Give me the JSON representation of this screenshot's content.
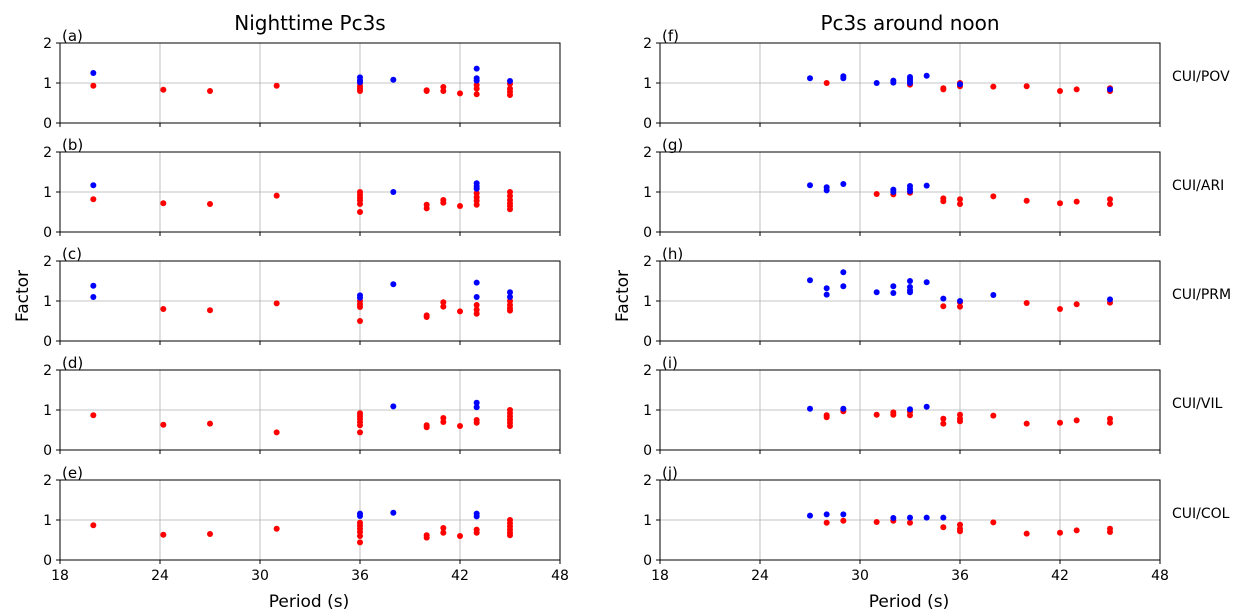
{
  "chart_data": {
    "type": "scatter",
    "column_titles": [
      "Nighttime Pc3s",
      "Pc3s around noon"
    ],
    "xlabel": "Period (s)",
    "ylabel": "Factor",
    "xlim": [
      18,
      48
    ],
    "ylim": [
      0,
      2
    ],
    "xticks": [
      18,
      24,
      30,
      36,
      42,
      48
    ],
    "yticks": [
      0,
      1,
      2
    ],
    "grid": true,
    "series_colors": {
      "blue": "#0000ff",
      "red": "#ff0000"
    },
    "stations": [
      "CUI/POV",
      "CUI/ARI",
      "CUI/PRM",
      "CUI/VIL",
      "CUI/COL"
    ],
    "panels": [
      {
        "label": "(a)",
        "column": 0,
        "row": 0,
        "blue": [
          [
            20,
            1.25
          ],
          [
            36,
            1.14
          ],
          [
            36,
            1.07
          ],
          [
            36,
            1.02
          ],
          [
            38,
            1.08
          ],
          [
            43,
            1.36
          ],
          [
            43,
            1.12
          ],
          [
            43,
            1.06
          ],
          [
            45,
            1.05
          ]
        ],
        "red": [
          [
            20,
            0.93
          ],
          [
            24.2,
            0.83
          ],
          [
            27,
            0.8
          ],
          [
            31,
            0.93
          ],
          [
            36,
            1.0
          ],
          [
            36,
            0.92
          ],
          [
            36,
            0.86
          ],
          [
            36,
            0.8
          ],
          [
            40,
            0.82
          ],
          [
            40,
            0.8
          ],
          [
            41,
            0.9
          ],
          [
            41,
            0.8
          ],
          [
            42,
            0.74
          ],
          [
            43,
            0.95
          ],
          [
            43,
            0.86
          ],
          [
            43,
            0.72
          ],
          [
            45,
            0.98
          ],
          [
            45,
            0.86
          ],
          [
            45,
            0.78
          ],
          [
            45,
            0.7
          ]
        ]
      },
      {
        "label": "(b)",
        "column": 0,
        "row": 1,
        "blue": [
          [
            20,
            1.17
          ],
          [
            38,
            1.0
          ],
          [
            43,
            1.22
          ],
          [
            43,
            1.14
          ],
          [
            43,
            1.08
          ]
        ],
        "red": [
          [
            20,
            0.82
          ],
          [
            24.2,
            0.72
          ],
          [
            27,
            0.7
          ],
          [
            31,
            0.91
          ],
          [
            36,
            1.0
          ],
          [
            36,
            0.93
          ],
          [
            36,
            0.86
          ],
          [
            36,
            0.79
          ],
          [
            36,
            0.7
          ],
          [
            36,
            0.5
          ],
          [
            40,
            0.68
          ],
          [
            40,
            0.59
          ],
          [
            41,
            0.8
          ],
          [
            41,
            0.73
          ],
          [
            42,
            0.65
          ],
          [
            43,
            0.97
          ],
          [
            43,
            0.87
          ],
          [
            43,
            0.78
          ],
          [
            43,
            0.68
          ],
          [
            45,
            1.0
          ],
          [
            45,
            0.9
          ],
          [
            45,
            0.8
          ],
          [
            45,
            0.72
          ],
          [
            45,
            0.65
          ],
          [
            45,
            0.57
          ]
        ]
      },
      {
        "label": "(c)",
        "column": 0,
        "row": 2,
        "blue": [
          [
            20,
            1.38
          ],
          [
            20,
            1.1
          ],
          [
            36,
            1.14
          ],
          [
            36,
            1.08
          ],
          [
            38,
            1.42
          ],
          [
            43,
            1.46
          ],
          [
            43,
            1.1
          ],
          [
            45,
            1.22
          ],
          [
            45,
            1.1
          ]
        ],
        "red": [
          [
            24.2,
            0.8
          ],
          [
            27,
            0.77
          ],
          [
            31,
            0.94
          ],
          [
            36,
            1.0
          ],
          [
            36,
            0.92
          ],
          [
            36,
            0.85
          ],
          [
            36,
            0.5
          ],
          [
            40,
            0.64
          ],
          [
            40,
            0.6
          ],
          [
            41,
            0.97
          ],
          [
            41,
            0.86
          ],
          [
            42,
            0.74
          ],
          [
            43,
            0.9
          ],
          [
            43,
            0.78
          ],
          [
            43,
            0.68
          ],
          [
            45,
            1.0
          ],
          [
            45,
            0.9
          ],
          [
            45,
            0.82
          ],
          [
            45,
            0.76
          ]
        ]
      },
      {
        "label": "(d)",
        "column": 0,
        "row": 3,
        "blue": [
          [
            38,
            1.09
          ],
          [
            43,
            1.18
          ],
          [
            43,
            1.07
          ]
        ],
        "red": [
          [
            20,
            0.87
          ],
          [
            24.2,
            0.63
          ],
          [
            27,
            0.66
          ],
          [
            31,
            0.44
          ],
          [
            36,
            0.92
          ],
          [
            36,
            0.85
          ],
          [
            36,
            0.78
          ],
          [
            36,
            0.7
          ],
          [
            36,
            0.62
          ],
          [
            36,
            0.44
          ],
          [
            40,
            0.62
          ],
          [
            40,
            0.57
          ],
          [
            41,
            0.8
          ],
          [
            41,
            0.7
          ],
          [
            42,
            0.6
          ],
          [
            43,
            0.75
          ],
          [
            43,
            0.68
          ],
          [
            45,
            1.0
          ],
          [
            45,
            0.92
          ],
          [
            45,
            0.84
          ],
          [
            45,
            0.76
          ],
          [
            45,
            0.68
          ],
          [
            45,
            0.6
          ]
        ]
      },
      {
        "label": "(e)",
        "column": 0,
        "row": 4,
        "blue": [
          [
            36,
            1.16
          ],
          [
            36,
            1.1
          ],
          [
            38,
            1.18
          ],
          [
            43,
            1.16
          ],
          [
            43,
            1.09
          ]
        ],
        "red": [
          [
            20,
            0.87
          ],
          [
            24.2,
            0.63
          ],
          [
            27,
            0.65
          ],
          [
            31,
            0.78
          ],
          [
            36,
            0.93
          ],
          [
            36,
            0.86
          ],
          [
            36,
            0.78
          ],
          [
            36,
            0.7
          ],
          [
            36,
            0.6
          ],
          [
            36,
            0.44
          ],
          [
            40,
            0.62
          ],
          [
            40,
            0.56
          ],
          [
            41,
            0.8
          ],
          [
            41,
            0.68
          ],
          [
            42,
            0.6
          ],
          [
            43,
            0.76
          ],
          [
            43,
            0.68
          ],
          [
            45,
            1.0
          ],
          [
            45,
            0.92
          ],
          [
            45,
            0.84
          ],
          [
            45,
            0.76
          ],
          [
            45,
            0.68
          ],
          [
            45,
            0.62
          ]
        ]
      },
      {
        "label": "(f)",
        "column": 1,
        "row": 0,
        "blue": [
          [
            27,
            1.12
          ],
          [
            29,
            1.17
          ],
          [
            29,
            1.12
          ],
          [
            31,
            1.0
          ],
          [
            32,
            1.06
          ],
          [
            32,
            1.01
          ],
          [
            33,
            1.15
          ],
          [
            33,
            1.1
          ],
          [
            33,
            1.05
          ],
          [
            33,
            1.0
          ],
          [
            34,
            1.18
          ],
          [
            36,
            0.97
          ],
          [
            45,
            0.84
          ]
        ],
        "red": [
          [
            28,
            1.0
          ],
          [
            33,
            0.96
          ],
          [
            35,
            0.87
          ],
          [
            35,
            0.84
          ],
          [
            36,
            1.0
          ],
          [
            36,
            0.92
          ],
          [
            38,
            0.91
          ],
          [
            40,
            0.92
          ],
          [
            42,
            0.8
          ],
          [
            43,
            0.84
          ],
          [
            45,
            0.87
          ],
          [
            45,
            0.8
          ]
        ]
      },
      {
        "label": "(g)",
        "column": 1,
        "row": 1,
        "blue": [
          [
            27,
            1.17
          ],
          [
            28,
            1.12
          ],
          [
            28,
            1.04
          ],
          [
            29,
            1.2
          ],
          [
            32,
            1.06
          ],
          [
            32,
            1.0
          ],
          [
            33,
            1.15
          ],
          [
            33,
            1.08
          ],
          [
            33,
            1.02
          ],
          [
            34,
            1.16
          ]
        ],
        "red": [
          [
            31,
            0.95
          ],
          [
            32,
            0.94
          ],
          [
            33,
            0.98
          ],
          [
            35,
            0.84
          ],
          [
            35,
            0.77
          ],
          [
            36,
            0.82
          ],
          [
            36,
            0.7
          ],
          [
            38,
            0.89
          ],
          [
            40,
            0.78
          ],
          [
            42,
            0.72
          ],
          [
            43,
            0.76
          ],
          [
            45,
            0.82
          ],
          [
            45,
            0.7
          ]
        ]
      },
      {
        "label": "(h)",
        "column": 1,
        "row": 2,
        "blue": [
          [
            27,
            1.52
          ],
          [
            28,
            1.32
          ],
          [
            28,
            1.16
          ],
          [
            29,
            1.72
          ],
          [
            29,
            1.37
          ],
          [
            31,
            1.22
          ],
          [
            32,
            1.37
          ],
          [
            32,
            1.2
          ],
          [
            33,
            1.5
          ],
          [
            33,
            1.35
          ],
          [
            33,
            1.27
          ],
          [
            33,
            1.22
          ],
          [
            34,
            1.47
          ],
          [
            35,
            1.06
          ],
          [
            36,
            1.0
          ],
          [
            38,
            1.15
          ],
          [
            45,
            1.04
          ]
        ],
        "red": [
          [
            35,
            0.87
          ],
          [
            36,
            0.97
          ],
          [
            36,
            0.86
          ],
          [
            40,
            0.95
          ],
          [
            42,
            0.8
          ],
          [
            43,
            0.92
          ],
          [
            45,
            0.96
          ]
        ]
      },
      {
        "label": "(i)",
        "column": 1,
        "row": 3,
        "blue": [
          [
            27,
            1.03
          ],
          [
            29,
            1.03
          ],
          [
            33,
            1.02
          ],
          [
            34,
            1.08
          ]
        ],
        "red": [
          [
            28,
            0.87
          ],
          [
            28,
            0.82
          ],
          [
            29,
            0.97
          ],
          [
            31,
            0.88
          ],
          [
            32,
            0.94
          ],
          [
            32,
            0.88
          ],
          [
            33,
            0.96
          ],
          [
            33,
            0.87
          ],
          [
            35,
            0.78
          ],
          [
            35,
            0.66
          ],
          [
            36,
            0.88
          ],
          [
            36,
            0.78
          ],
          [
            36,
            0.72
          ],
          [
            38,
            0.86
          ],
          [
            40,
            0.66
          ],
          [
            42,
            0.68
          ],
          [
            43,
            0.74
          ],
          [
            45,
            0.78
          ],
          [
            45,
            0.68
          ]
        ]
      },
      {
        "label": "(j)",
        "column": 1,
        "row": 4,
        "blue": [
          [
            27,
            1.11
          ],
          [
            28,
            1.14
          ],
          [
            29,
            1.14
          ],
          [
            32,
            1.05
          ],
          [
            33,
            1.06
          ],
          [
            34,
            1.06
          ],
          [
            35,
            1.06
          ]
        ],
        "red": [
          [
            28,
            0.93
          ],
          [
            29,
            0.98
          ],
          [
            31,
            0.95
          ],
          [
            32,
            0.98
          ],
          [
            33,
            0.93
          ],
          [
            35,
            0.82
          ],
          [
            36,
            0.88
          ],
          [
            36,
            0.78
          ],
          [
            36,
            0.72
          ],
          [
            38,
            0.94
          ],
          [
            40,
            0.66
          ],
          [
            42,
            0.68
          ],
          [
            43,
            0.74
          ],
          [
            45,
            0.78
          ],
          [
            45,
            0.7
          ]
        ]
      }
    ]
  }
}
